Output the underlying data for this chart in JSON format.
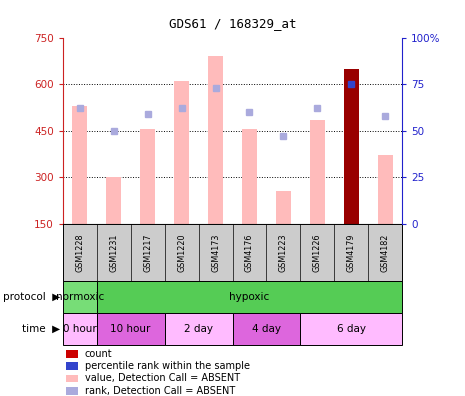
{
  "title": "GDS61 / 168329_at",
  "samples": [
    "GSM1228",
    "GSM1231",
    "GSM1217",
    "GSM1220",
    "GSM4173",
    "GSM4176",
    "GSM1223",
    "GSM1226",
    "GSM4179",
    "GSM4182"
  ],
  "bar_values": [
    530,
    300,
    455,
    610,
    690,
    455,
    255,
    485,
    650,
    370
  ],
  "rank_values": [
    62,
    50,
    59,
    62,
    73,
    60,
    47,
    62,
    75,
    58
  ],
  "bar_colors": [
    "#ffbbbb",
    "#ffbbbb",
    "#ffbbbb",
    "#ffbbbb",
    "#ffbbbb",
    "#ffbbbb",
    "#ffbbbb",
    "#ffbbbb",
    "#990000",
    "#ffbbbb"
  ],
  "rank_colors": [
    "#aaaadd",
    "#aaaadd",
    "#aaaadd",
    "#aaaadd",
    "#aaaadd",
    "#aaaadd",
    "#aaaadd",
    "#aaaadd",
    "#3344cc",
    "#aaaadd"
  ],
  "ylim_left": [
    150,
    750
  ],
  "ylim_right": [
    0,
    100
  ],
  "yticks_left": [
    150,
    300,
    450,
    600,
    750
  ],
  "yticks_right": [
    0,
    25,
    50,
    75,
    100
  ],
  "left_axis_color": "#cc2222",
  "right_axis_color": "#2222cc",
  "bar_width": 0.45,
  "proto_regions": [
    {
      "label": "normoxic",
      "xstart": -0.5,
      "xend": 0.5,
      "color": "#77dd77"
    },
    {
      "label": "hypoxic",
      "xstart": 0.5,
      "xend": 9.5,
      "color": "#55cc55"
    }
  ],
  "time_regions": [
    {
      "label": "0 hour",
      "xstart": -0.5,
      "xend": 0.5,
      "color": "#ffbbff"
    },
    {
      "label": "10 hour",
      "xstart": 0.5,
      "xend": 2.5,
      "color": "#dd66dd"
    },
    {
      "label": "2 day",
      "xstart": 2.5,
      "xend": 4.5,
      "color": "#ffbbff"
    },
    {
      "label": "4 day",
      "xstart": 4.5,
      "xend": 6.5,
      "color": "#dd66dd"
    },
    {
      "label": "6 day",
      "xstart": 6.5,
      "xend": 9.5,
      "color": "#ffbbff"
    }
  ],
  "sample_bg_color": "#cccccc",
  "legend_colors": [
    "#cc0000",
    "#3344cc",
    "#ffbbbb",
    "#aaaadd"
  ],
  "legend_labels": [
    "count",
    "percentile rank within the sample",
    "value, Detection Call = ABSENT",
    "rank, Detection Call = ABSENT"
  ]
}
